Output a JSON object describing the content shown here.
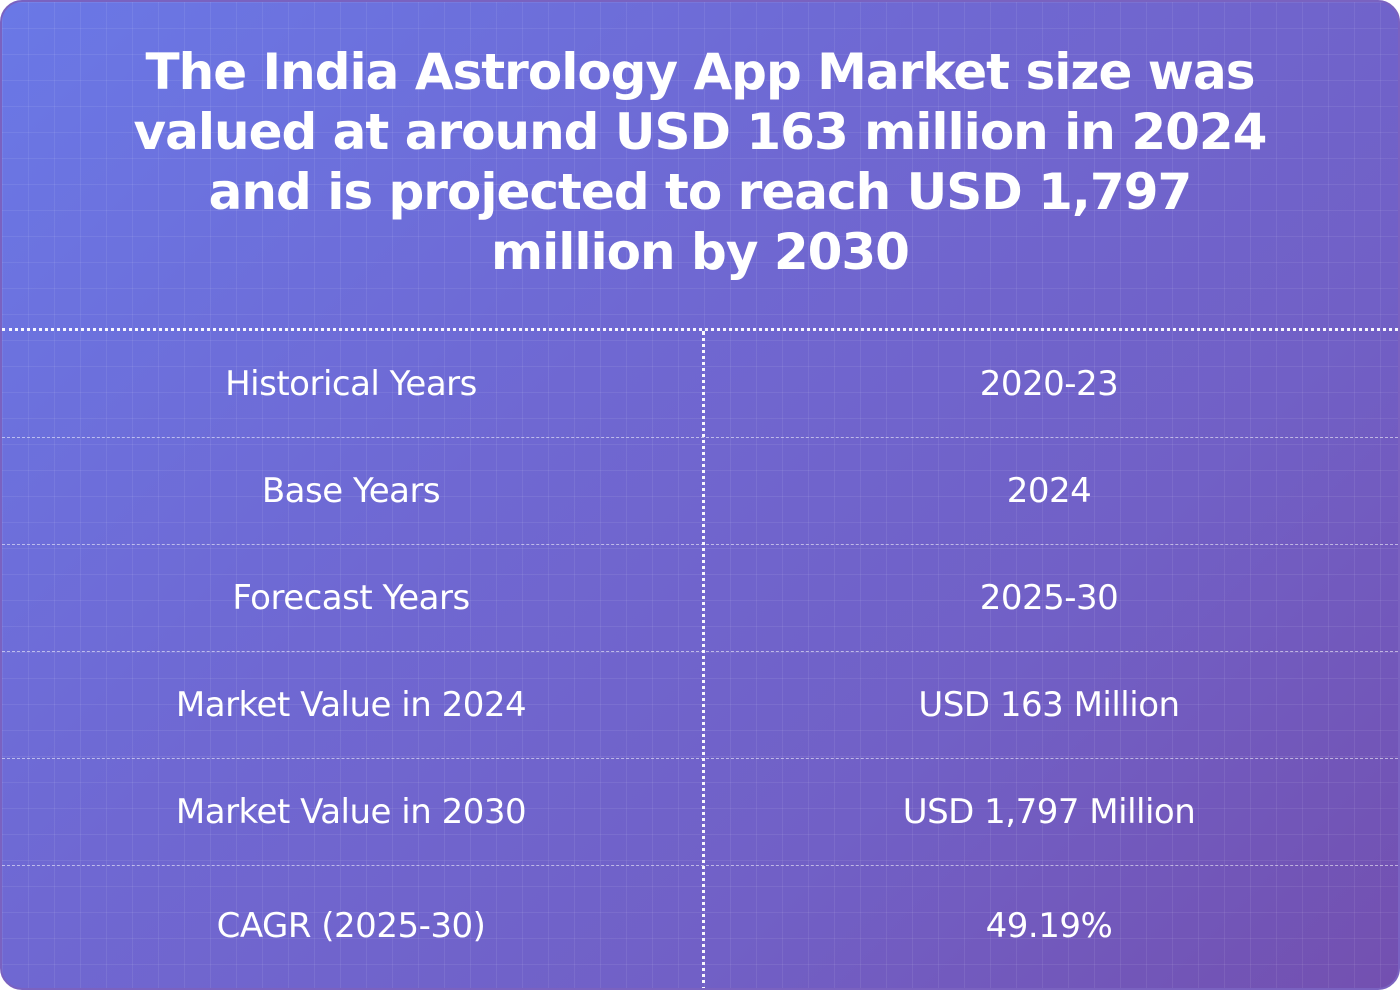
{
  "headline": "The India Astrology App Market size was valued at around USD 163 million in 2024 and is projected to reach USD 1,797 million by 2030",
  "table": {
    "rows": [
      {
        "label": "Historical Years",
        "value": "2020-23"
      },
      {
        "label": "Base Years",
        "value": "2024"
      },
      {
        "label": "Forecast Years",
        "value": "2025-30"
      },
      {
        "label": "Market Value in 2024",
        "value": "USD 163 Million"
      },
      {
        "label": "Market Value in 2030",
        "value": "USD 1,797 Million"
      },
      {
        "label": "CAGR (2025-30)",
        "value": "49.19%"
      }
    ]
  },
  "colors": {
    "background_start": "#6a78e6",
    "background_end": "#7350b0",
    "text": "#ffffff"
  }
}
